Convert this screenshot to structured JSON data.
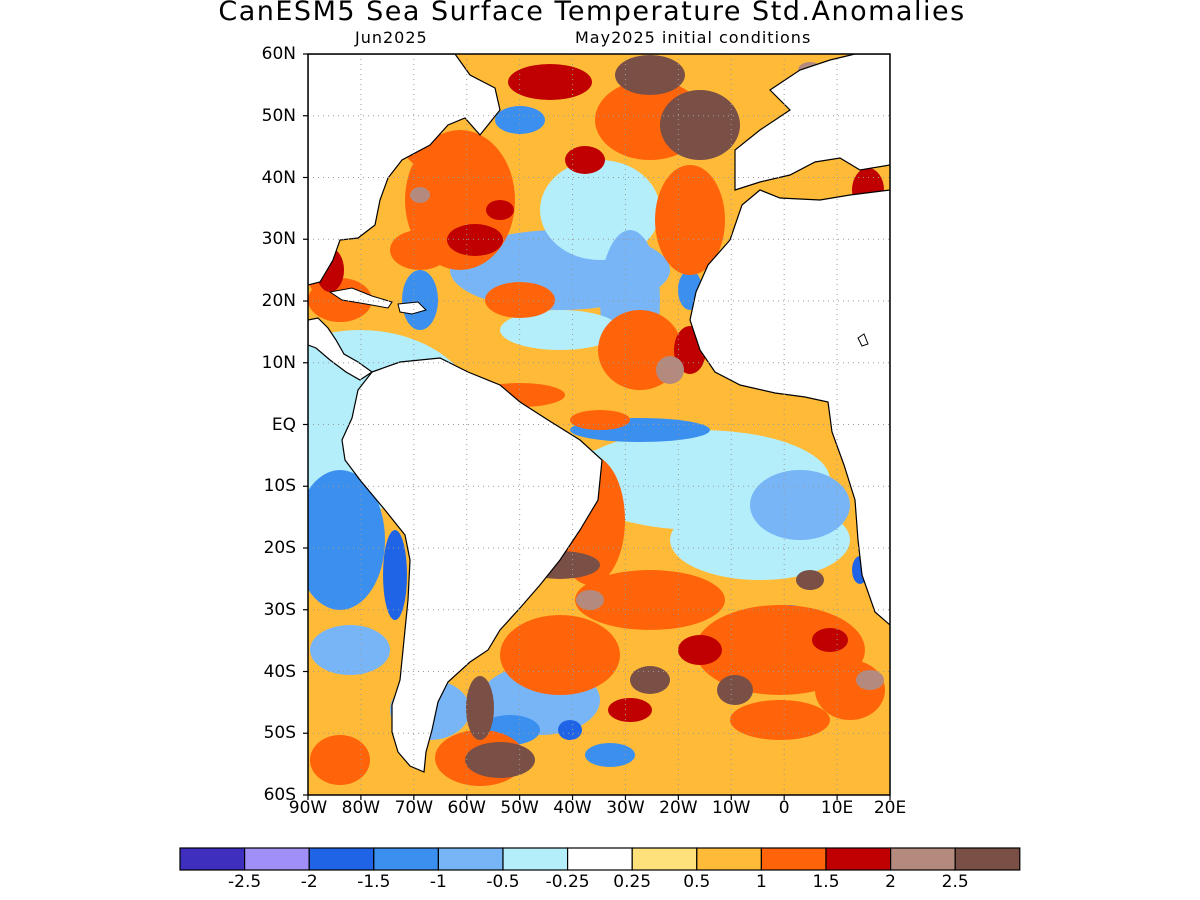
{
  "title": "CanESM5 Sea Surface Temperature Std.Anomalies",
  "subtitle_left": "Jun2025",
  "subtitle_right": "May2025 initial conditions",
  "lat_labels": [
    "60N",
    "50N",
    "40N",
    "30N",
    "20N",
    "10N",
    "EQ",
    "10S",
    "20S",
    "30S",
    "40S",
    "50S",
    "60S"
  ],
  "lon_labels": [
    "90W",
    "80W",
    "70W",
    "60W",
    "50W",
    "40W",
    "30W",
    "20W",
    "10W",
    "0",
    "10E",
    "20E"
  ],
  "colorbar": {
    "colors": [
      "#3e2fbf",
      "#9f8ff7",
      "#1f64e6",
      "#3b8fef",
      "#78b5f7",
      "#b4eefb",
      "#ffffff",
      "#ffe17b",
      "#ffbb38",
      "#ff640a",
      "#c00000",
      "#b48a7f",
      "#7a5046"
    ],
    "labels": [
      "-2.5",
      "-2",
      "-1.5",
      "-1",
      "-0.5",
      "-0.25",
      "0.25",
      "0.5",
      "1",
      "1.5",
      "2",
      "2.5"
    ]
  },
  "colors": {
    "land": "#ffffff",
    "coast": "#000000",
    "grid": "#9a9a9a"
  }
}
